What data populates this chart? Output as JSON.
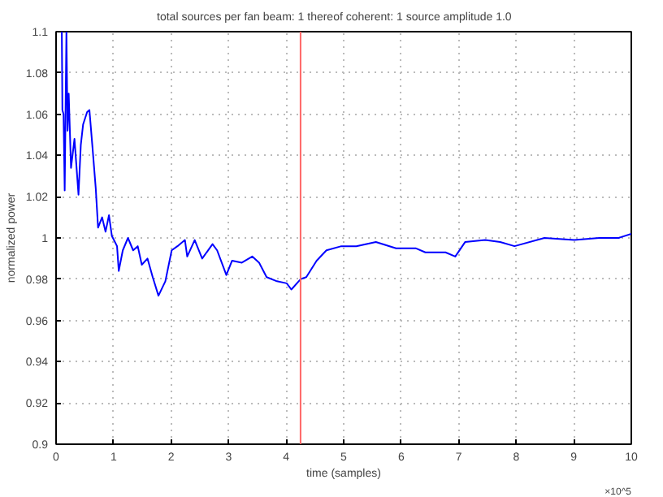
{
  "chart_data": {
    "type": "line",
    "title": "total sources per fan beam: 1    thereof coherent: 1    source amplitude 1.0",
    "xlabel": "time (samples)",
    "ylabel": "normalized power",
    "x": [
      0.1,
      0.11,
      0.13,
      0.15,
      0.18,
      0.2,
      0.22,
      0.26,
      0.32,
      0.39,
      0.43,
      0.47,
      0.54,
      0.58,
      0.63,
      0.69,
      0.73,
      0.8,
      0.86,
      0.92,
      0.97,
      1.06,
      1.09,
      1.16,
      1.25,
      1.34,
      1.42,
      1.49,
      1.59,
      1.68,
      1.78,
      1.9,
      2.01,
      2.11,
      2.24,
      2.28,
      2.41,
      2.54,
      2.72,
      2.8,
      2.96,
      3.06,
      3.23,
      3.41,
      3.53,
      3.66,
      3.84,
      4.01,
      4.09,
      4.25,
      4.35,
      4.53,
      4.7,
      4.96,
      5.22,
      5.56,
      5.91,
      6.25,
      6.42,
      6.77,
      6.94,
      7.11,
      7.46,
      7.72,
      7.97,
      8.49,
      9.01,
      9.44,
      9.78,
      10.0
    ],
    "series": [
      {
        "color": "#0000ff",
        "values": [
          1.1,
          1.062,
          1.06,
          1.023,
          1.1,
          1.052,
          1.07,
          1.034,
          1.048,
          1.021,
          1.045,
          1.055,
          1.061,
          1.062,
          1.045,
          1.024,
          1.005,
          1.01,
          1.003,
          1.011,
          1.001,
          0.996,
          0.984,
          0.994,
          1.0,
          0.994,
          0.996,
          0.987,
          0.99,
          0.981,
          0.972,
          0.979,
          0.994,
          0.996,
          0.999,
          0.991,
          0.999,
          0.99,
          0.997,
          0.994,
          0.982,
          0.989,
          0.988,
          0.991,
          0.988,
          0.981,
          0.979,
          0.978,
          0.975,
          0.98,
          0.981,
          0.989,
          0.994,
          0.996,
          0.996,
          0.998,
          0.995,
          0.995,
          0.993,
          0.993,
          0.991,
          0.998,
          0.999,
          0.998,
          0.996,
          1.0,
          0.999,
          1.0,
          1.0,
          1.002
        ]
      }
    ],
    "ref_lines": [
      {
        "axis": "x",
        "value": 4.25,
        "color": "#ff6666"
      }
    ],
    "annotations": [
      "×10^5"
    ],
    "xlim": [
      0,
      10
    ],
    "xticks": [
      0,
      1,
      2,
      3,
      4,
      5,
      6,
      7,
      8,
      9,
      10
    ],
    "ylim": [
      0.9,
      1.1
    ],
    "yticks": [
      0.9,
      0.92,
      0.94,
      0.96,
      0.98,
      1,
      1.02,
      1.04,
      1.06,
      1.08,
      1.1
    ],
    "grid": true,
    "line_style": "solid"
  }
}
